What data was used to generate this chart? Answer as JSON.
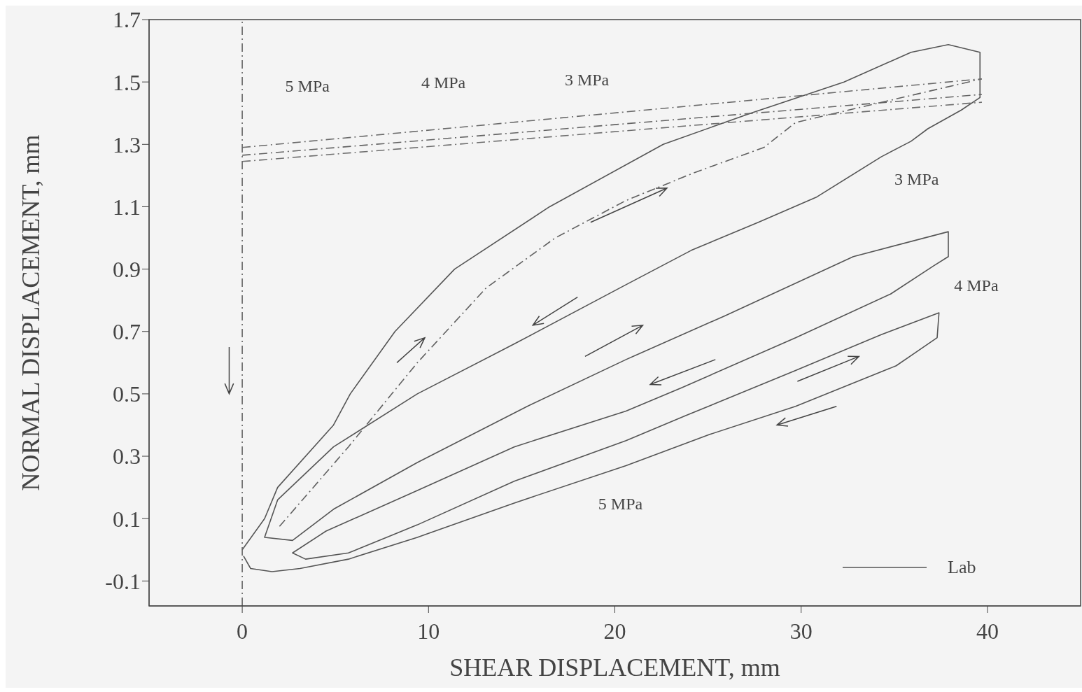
{
  "chart_data": {
    "type": "line",
    "xlabel": "SHEAR DISPLACEMENT, mm",
    "ylabel": "NORMAL DISPLACEMENT, mm",
    "xlim": [
      -5,
      45
    ],
    "xticks": [
      0,
      10,
      20,
      30,
      40
    ],
    "ylim": [
      -0.18,
      1.7
    ],
    "yticks": [
      -0.1,
      0.1,
      0.3,
      0.5,
      0.7,
      0.9,
      1.1,
      1.3,
      1.5,
      1.7
    ],
    "grid": false,
    "legend": "bottom right",
    "marker": "none",
    "series": [
      {
        "name": "Lab",
        "color": "#555555",
        "line_style": "solid",
        "x": [
          0,
          1.2,
          1.9,
          4.9,
          5.8,
          8.2,
          11.4,
          16.5,
          22.6,
          27.3,
          32.3,
          35.9,
          37.9,
          39.6,
          39.6,
          38.6,
          36.8,
          35.9,
          34.3,
          30.8,
          27.7,
          24.1,
          20.6,
          14.6,
          9.4,
          4.9,
          1.9,
          1.2,
          2.7,
          4.9,
          9.4,
          15.3,
          20.6,
          25.9,
          32.8,
          37.9,
          37.9,
          37.1,
          34.8,
          29.7,
          23.6,
          20.6,
          14.6,
          9.4,
          4.5,
          2.7,
          3.4,
          5.7,
          9.4,
          14.6,
          20.6,
          23.8,
          29.7,
          34.3,
          37.4,
          37.3,
          35.1,
          29.7,
          25.1,
          20.6,
          14.6,
          9.4,
          5.7,
          3.1,
          1.6,
          0.45,
          0.07
        ],
        "values": [
          0,
          0.1,
          0.2,
          0.4,
          0.5,
          0.7,
          0.9,
          1.1,
          1.3,
          1.4,
          1.5,
          1.595,
          1.62,
          1.595,
          1.45,
          1.41,
          1.35,
          1.31,
          1.26,
          1.13,
          1.05,
          0.96,
          0.85,
          0.66,
          0.5,
          0.33,
          0.16,
          0.04,
          0.03,
          0.13,
          0.28,
          0.46,
          0.61,
          0.75,
          0.94,
          1.02,
          0.94,
          0.91,
          0.82,
          0.68,
          0.52,
          0.445,
          0.33,
          0.19,
          0.06,
          -0.01,
          -0.03,
          -0.01,
          0.08,
          0.22,
          0.35,
          0.43,
          0.575,
          0.69,
          0.76,
          0.68,
          0.59,
          0.46,
          0.37,
          0.27,
          0.15,
          0.04,
          -0.03,
          -0.06,
          -0.07,
          -0.06,
          -0.02
        ]
      },
      {
        "color": "#606060",
        "line_style": "dashed",
        "x": [
          2.0,
          5.7,
          9.4,
          13.1,
          16.8,
          20.6,
          24.3,
          28.0,
          29.7,
          39.7
        ],
        "values": [
          0.075,
          0.33,
          0.6,
          0.84,
          1.0,
          1.12,
          1.21,
          1.29,
          1.37,
          1.51
        ]
      },
      {
        "color": "#6a6a6a",
        "line_style": "dashed",
        "x": [
          0,
          39.7
        ],
        "values": [
          1.29,
          1.51
        ]
      },
      {
        "color": "#646464",
        "line_style": "dashed",
        "x": [
          0,
          39.7
        ],
        "values": [
          1.265,
          1.46
        ]
      },
      {
        "color": "#6e6e6e",
        "line_style": "dashed",
        "x": [
          0,
          39.7
        ],
        "values": [
          1.245,
          1.435
        ]
      }
    ],
    "ref_lines": [
      {
        "axis": "x",
        "value": 0,
        "color": "#666666",
        "line_style": "dashed"
      }
    ],
    "annotations": [
      "5 MPa",
      "4 MPa",
      "3 MPa",
      "3 MPa",
      "4 MPa",
      "5 MPa"
    ]
  }
}
